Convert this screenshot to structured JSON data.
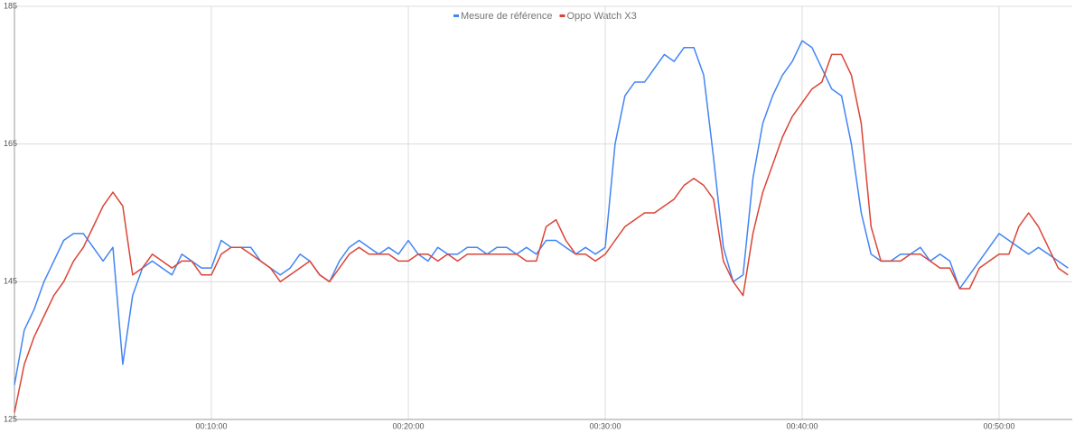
{
  "chart_data": {
    "type": "line",
    "x": [
      0,
      30,
      60,
      90,
      120,
      150,
      180,
      210,
      240,
      270,
      300,
      330,
      360,
      390,
      420,
      450,
      480,
      510,
      540,
      570,
      600,
      630,
      660,
      690,
      720,
      750,
      780,
      810,
      840,
      870,
      900,
      930,
      960,
      990,
      1020,
      1050,
      1080,
      1110,
      1140,
      1170,
      1200,
      1230,
      1260,
      1290,
      1320,
      1350,
      1380,
      1410,
      1440,
      1470,
      1500,
      1530,
      1560,
      1590,
      1620,
      1650,
      1680,
      1710,
      1740,
      1770,
      1800,
      1830,
      1860,
      1890,
      1920,
      1950,
      1980,
      2010,
      2040,
      2070,
      2100,
      2130,
      2160,
      2190,
      2220,
      2250,
      2280,
      2310,
      2340,
      2370,
      2400,
      2430,
      2460,
      2490,
      2520,
      2550,
      2580,
      2610,
      2640,
      2670,
      2700,
      2730,
      2760,
      2790,
      2820,
      2850,
      2880,
      2910,
      2940,
      2970,
      3000,
      3030,
      3060,
      3090,
      3120,
      3150,
      3180,
      3210
    ],
    "series": [
      {
        "name": "Mesure de référence",
        "color": "#4285f4",
        "values": [
          130,
          138,
          141,
          145,
          148,
          151,
          152,
          152,
          150,
          148,
          150,
          133,
          143,
          147,
          148,
          147,
          146,
          149,
          148,
          147,
          147,
          151,
          150,
          150,
          150,
          148,
          147,
          146,
          147,
          149,
          148,
          146,
          145,
          148,
          150,
          151,
          150,
          149,
          150,
          149,
          151,
          149,
          148,
          150,
          149,
          149,
          150,
          150,
          149,
          150,
          150,
          149,
          150,
          149,
          151,
          151,
          150,
          149,
          150,
          149,
          150,
          165,
          172,
          174,
          174,
          176,
          178,
          177,
          179,
          179,
          175,
          163,
          150,
          145,
          146,
          160,
          168,
          172,
          175,
          177,
          180,
          179,
          176,
          173,
          172,
          165,
          155,
          149,
          148,
          148,
          149,
          149,
          150,
          148,
          149,
          148,
          144,
          146,
          148,
          150,
          152,
          151,
          150,
          149,
          150,
          149,
          148,
          147
        ]
      },
      {
        "name": "Oppo Watch X3",
        "color": "#db4437",
        "values": [
          126,
          133,
          137,
          140,
          143,
          145,
          148,
          150,
          153,
          156,
          158,
          156,
          146,
          147,
          149,
          148,
          147,
          148,
          148,
          146,
          146,
          149,
          150,
          150,
          149,
          148,
          147,
          145,
          146,
          147,
          148,
          146,
          145,
          147,
          149,
          150,
          149,
          149,
          149,
          148,
          148,
          149,
          149,
          148,
          149,
          148,
          149,
          149,
          149,
          149,
          149,
          149,
          148,
          148,
          153,
          154,
          151,
          149,
          149,
          148,
          149,
          151,
          153,
          154,
          155,
          155,
          156,
          157,
          159,
          160,
          159,
          157,
          148,
          145,
          143,
          152,
          158,
          162,
          166,
          169,
          171,
          173,
          174,
          178,
          178,
          175,
          168,
          153,
          148,
          148,
          148,
          149,
          149,
          148,
          147,
          147,
          144,
          144,
          147,
          148,
          149,
          149,
          153,
          155,
          153,
          150,
          147,
          146
        ]
      }
    ],
    "xlim": [
      0,
      3223
    ],
    "xticks": [
      {
        "value": 600,
        "label": "00:10:00"
      },
      {
        "value": 1200,
        "label": "00:20:00"
      },
      {
        "value": 1800,
        "label": "00:30:00"
      },
      {
        "value": 2400,
        "label": "00:40:00"
      },
      {
        "value": 3000,
        "label": "00:50:00"
      }
    ],
    "ylim": [
      125,
      185
    ],
    "yticks": [
      125,
      145,
      165,
      185
    ],
    "grid": true
  }
}
